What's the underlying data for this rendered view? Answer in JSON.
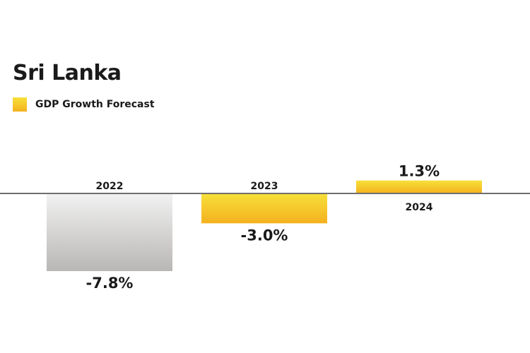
{
  "chart_data": {
    "type": "bar",
    "title": "Sri Lanka",
    "categories": [
      "2022",
      "2023",
      "2024"
    ],
    "series": [
      {
        "name": "GDP Growth Forecast",
        "values": [
          -7.8,
          -3.0,
          1.3
        ]
      }
    ],
    "data_labels": [
      "-7.8%",
      "-3.0%",
      "1.3%"
    ],
    "ylim": [
      -8,
      1.3
    ],
    "grid": false,
    "legend_position": "top-left",
    "colors": {
      "forecast_top": "#f7e03a",
      "forecast_bottom": "#f4b11e",
      "actual_top": "#f2f2f2",
      "actual_bottom": "#b9b7b5",
      "axis": "#6f6f6f"
    }
  }
}
